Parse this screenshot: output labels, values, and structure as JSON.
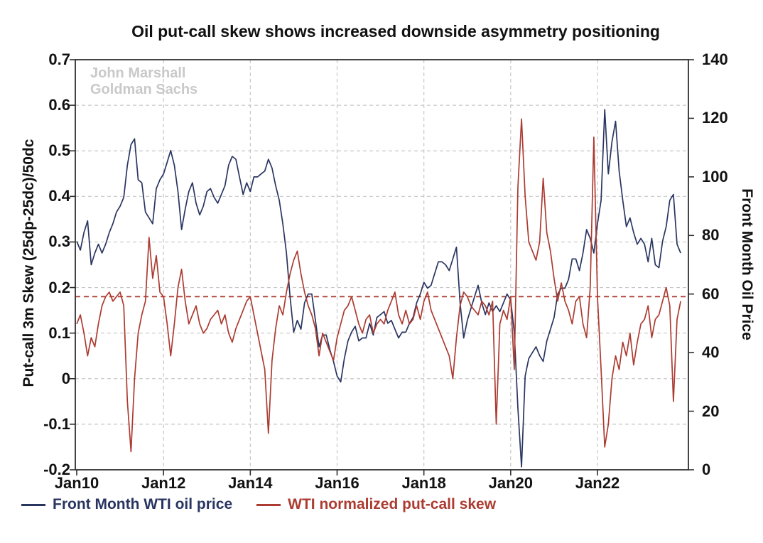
{
  "chart_data": {
    "type": "line",
    "title": "Oil put-call skew shows increased downside asymmetry positioning",
    "watermark": {
      "line1": "John Marshall",
      "line2": "Goldman Sachs"
    },
    "x_axis": {
      "start": "2010-01",
      "frequency": "monthly",
      "tick_labels": [
        "Jan10",
        "Jan12",
        "Jan14",
        "Jan16",
        "Jan18",
        "Jan20",
        "Jan22"
      ],
      "tick_month_offsets": [
        0,
        24,
        48,
        72,
        96,
        120,
        144
      ]
    },
    "left_axis": {
      "label": "Put-call 3m Skew (25dp-25dc)/50dc",
      "min": -0.2,
      "max": 0.7,
      "tick_values": [
        0.7,
        0.6,
        0.5,
        0.4,
        0.3,
        0.2,
        0.1,
        0,
        -0.1,
        -0.2
      ],
      "tick_labels": [
        "0.7",
        "0.6",
        "0.5",
        "0.4",
        "0.3",
        "0.2",
        "0.1",
        "0",
        "-0.1",
        "-0.2"
      ]
    },
    "right_axis": {
      "label": "Front Month Oil Price",
      "min": 0,
      "max": 140,
      "tick_values": [
        140,
        120,
        100,
        80,
        60,
        40,
        20,
        0
      ],
      "tick_labels": [
        "140",
        "120",
        "100",
        "80",
        "60",
        "40",
        "20",
        "0"
      ]
    },
    "grid": {
      "show": true,
      "color": "#c7c7c7",
      "style": "dashed"
    },
    "reference_line": {
      "axis": "left",
      "value": 0.18,
      "color": "#ac3b31",
      "style": "dashed"
    },
    "legend_position": "bottom-left",
    "series": [
      {
        "name": "Front Month WTI oil price",
        "axis": "right",
        "color": "#293561",
        "values": [
          78,
          75,
          81,
          85,
          70,
          74,
          77,
          74,
          77,
          81,
          84,
          88,
          90,
          93,
          104,
          111,
          113,
          99,
          98,
          88,
          86,
          84,
          96,
          99,
          101,
          105,
          109,
          104,
          95,
          82,
          89,
          95,
          98,
          91,
          87,
          90,
          95,
          96,
          93,
          91,
          94,
          97,
          104,
          107,
          106,
          100,
          94,
          98,
          95,
          100,
          100,
          101,
          102,
          106,
          103,
          97,
          92,
          84,
          74,
          59,
          47,
          51,
          48,
          57,
          60,
          60,
          51,
          42,
          46,
          46,
          41,
          37,
          32,
          30,
          38,
          44,
          47,
          49,
          44,
          45,
          45,
          50,
          46,
          52,
          53,
          54,
          50,
          51,
          48,
          45,
          47,
          47,
          50,
          52,
          57,
          60,
          64,
          62,
          63,
          67,
          71,
          71,
          70,
          68,
          72,
          76,
          57,
          45,
          51,
          55,
          59,
          63,
          57,
          53,
          57,
          54,
          56,
          54,
          57,
          60,
          58,
          47,
          21,
          1,
          32,
          38,
          40,
          42,
          39,
          37,
          44,
          48,
          52,
          60,
          62,
          62,
          65,
          72,
          72,
          68,
          74,
          82,
          79,
          74,
          84,
          92,
          123,
          101,
          112,
          119,
          102,
          92,
          83,
          86,
          81,
          77,
          79,
          77,
          71,
          79,
          70,
          69,
          78,
          83,
          92,
          94,
          77,
          74
        ]
      },
      {
        "name": "WTI normalized put-call skew",
        "axis": "left",
        "color": "#ac3b31",
        "values": [
          0.12,
          0.14,
          0.1,
          0.05,
          0.09,
          0.07,
          0.12,
          0.16,
          0.18,
          0.19,
          0.17,
          0.18,
          0.19,
          0.16,
          -0.05,
          -0.16,
          0.0,
          0.1,
          0.14,
          0.17,
          0.31,
          0.22,
          0.27,
          0.19,
          0.18,
          0.12,
          0.05,
          0.12,
          0.2,
          0.24,
          0.17,
          0.12,
          0.14,
          0.16,
          0.12,
          0.1,
          0.11,
          0.13,
          0.14,
          0.15,
          0.12,
          0.14,
          0.1,
          0.08,
          0.11,
          0.13,
          0.15,
          0.17,
          0.18,
          0.14,
          0.1,
          0.06,
          0.02,
          -0.12,
          0.04,
          0.11,
          0.16,
          0.14,
          0.19,
          0.23,
          0.26,
          0.28,
          0.23,
          0.19,
          0.16,
          0.14,
          0.11,
          0.05,
          0.1,
          0.08,
          0.06,
          0.04,
          0.09,
          0.12,
          0.15,
          0.16,
          0.18,
          0.15,
          0.12,
          0.1,
          0.13,
          0.14,
          0.1,
          0.12,
          0.13,
          0.12,
          0.15,
          0.17,
          0.19,
          0.14,
          0.12,
          0.15,
          0.12,
          0.13,
          0.16,
          0.13,
          0.17,
          0.19,
          0.15,
          0.13,
          0.11,
          0.09,
          0.07,
          0.05,
          0.0,
          0.09,
          0.16,
          0.19,
          0.18,
          0.16,
          0.15,
          0.14,
          0.17,
          0.16,
          0.14,
          0.17,
          -0.1,
          0.12,
          0.15,
          0.13,
          0.18,
          0.02,
          0.42,
          0.57,
          0.4,
          0.3,
          0.28,
          0.26,
          0.3,
          0.44,
          0.32,
          0.28,
          0.22,
          0.17,
          0.21,
          0.17,
          0.15,
          0.12,
          0.17,
          0.18,
          0.12,
          0.09,
          0.2,
          0.53,
          0.18,
          0.02,
          -0.15,
          -0.1,
          0.0,
          0.05,
          0.02,
          0.08,
          0.05,
          0.1,
          0.03,
          0.08,
          0.12,
          0.13,
          0.16,
          0.09,
          0.13,
          0.14,
          0.17,
          0.2,
          0.16,
          -0.05,
          0.13,
          0.17
        ]
      }
    ]
  },
  "legend": {
    "item1_label": "Front Month WTI oil price",
    "item2_label": "WTI normalized put-call skew"
  },
  "colors": {
    "wti_price_line": "#293561",
    "skew_line": "#ac3b31",
    "grid": "#c7c7c7",
    "frame": "#2f2f2f",
    "watermark": "#c9c9c9",
    "text": "#111111"
  }
}
